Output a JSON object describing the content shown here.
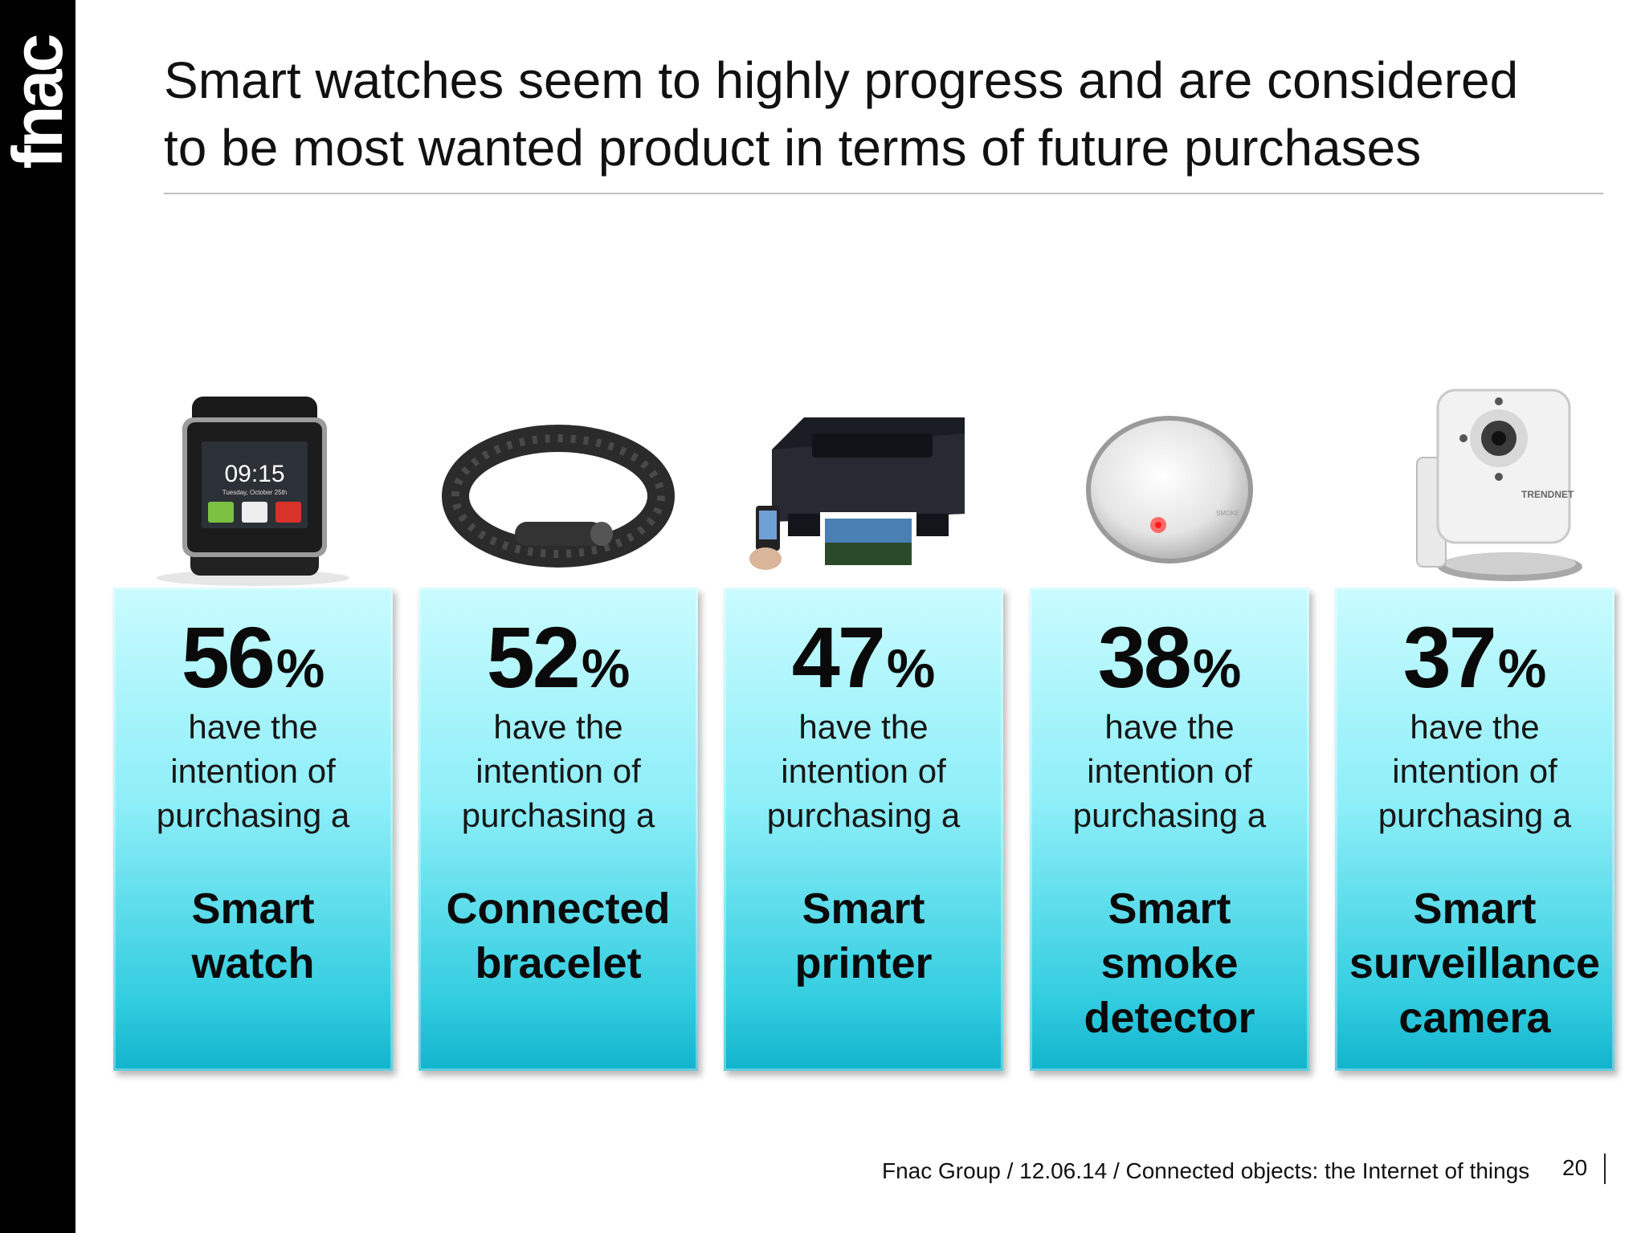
{
  "brand": {
    "logo_text": "fnac"
  },
  "title": {
    "line1": "Smart watches seem to highly progress and are considered",
    "line2": "to be most wanted product  in terms of future purchases"
  },
  "cards": [
    {
      "percent": "56",
      "percent_symbol": "%",
      "line1": "have the",
      "line2": "intention of",
      "line3": "purchasing a",
      "product1": "Smart",
      "product2": "watch",
      "product3": "",
      "image_icon": "smart-watch-image"
    },
    {
      "percent": "52",
      "percent_symbol": "%",
      "line1": "have the",
      "line2": "intention of",
      "line3": "purchasing a",
      "product1": "Connected",
      "product2": "bracelet",
      "product3": "",
      "image_icon": "fitness-bracelet-image"
    },
    {
      "percent": "47",
      "percent_symbol": "%",
      "line1": "have the",
      "line2": "intention of",
      "line3": "purchasing a",
      "product1": "Smart",
      "product2": "printer",
      "product3": "",
      "image_icon": "printer-image"
    },
    {
      "percent": "38",
      "percent_symbol": "%",
      "line1": "have the",
      "line2": "intention of",
      "line3": "purchasing a",
      "product1": "Smart",
      "product2": "smoke",
      "product3": "detector",
      "image_icon": "smoke-detector-image"
    },
    {
      "percent": "37",
      "percent_symbol": "%",
      "line1": "have the",
      "line2": "intention of",
      "line3": "purchasing a",
      "product1": "Smart",
      "product2": "surveillance",
      "product3": "camera",
      "image_icon": "surveillance-camera-image"
    }
  ],
  "watch_screen": {
    "time": "09:15",
    "date": "Tuesday, October 25th"
  },
  "footer": {
    "text": "Fnac Group / 12.06.14 / Connected objects: the Internet of things",
    "page_number": "20"
  },
  "colors": {
    "card_top": "#c9fbfe",
    "card_bottom": "#11b3cc",
    "sidebar": "#000000"
  }
}
